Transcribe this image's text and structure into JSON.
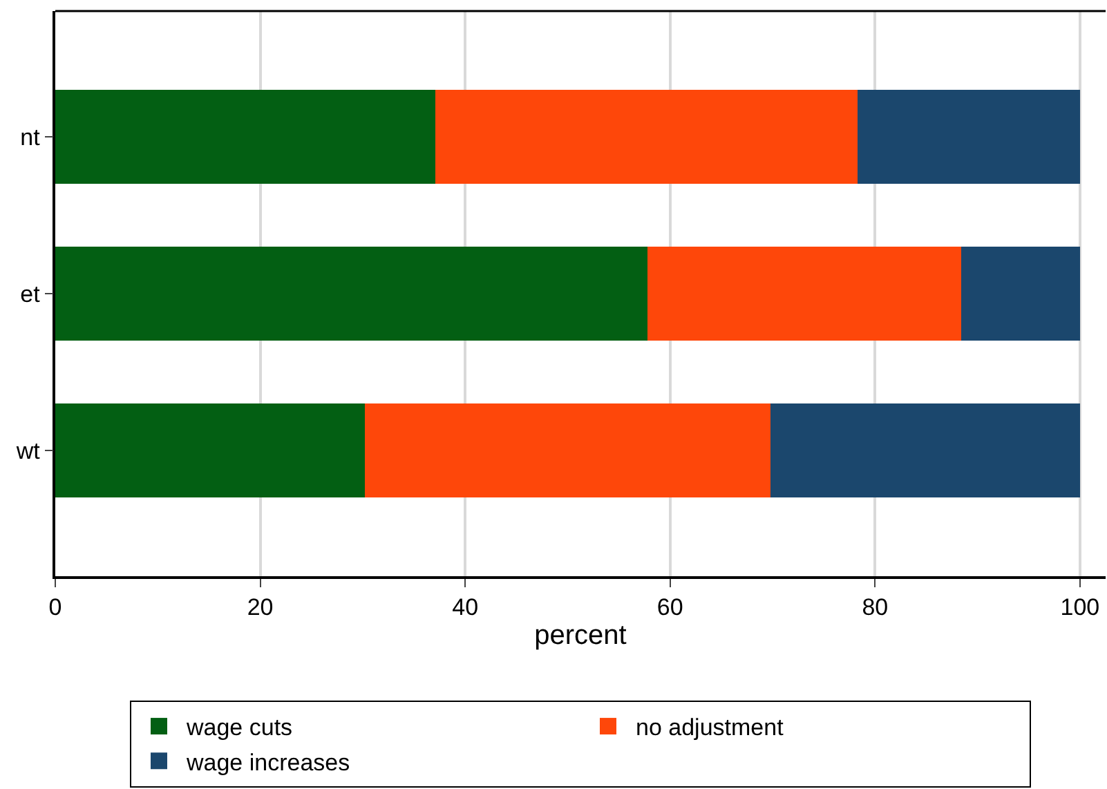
{
  "chart_data": {
    "type": "bar",
    "orientation": "horizontal",
    "stacked": true,
    "categories": [
      "nt",
      "et",
      "wt"
    ],
    "xlabel": "percent",
    "xlim": [
      0,
      102.5
    ],
    "xticks": [
      0,
      20,
      40,
      60,
      80,
      100
    ],
    "grid": "x",
    "legend": "bottom",
    "series": [
      {
        "name": "wage cuts",
        "color": "#035f13",
        "values": [
          37.1,
          57.8,
          30.2
        ]
      },
      {
        "name": "no adjustment",
        "color": "#fe470a",
        "values": [
          41.2,
          30.6,
          39.6
        ]
      },
      {
        "name": "wage increases",
        "color": "#1b476d",
        "values": [
          21.7,
          11.6,
          30.2
        ]
      }
    ]
  }
}
